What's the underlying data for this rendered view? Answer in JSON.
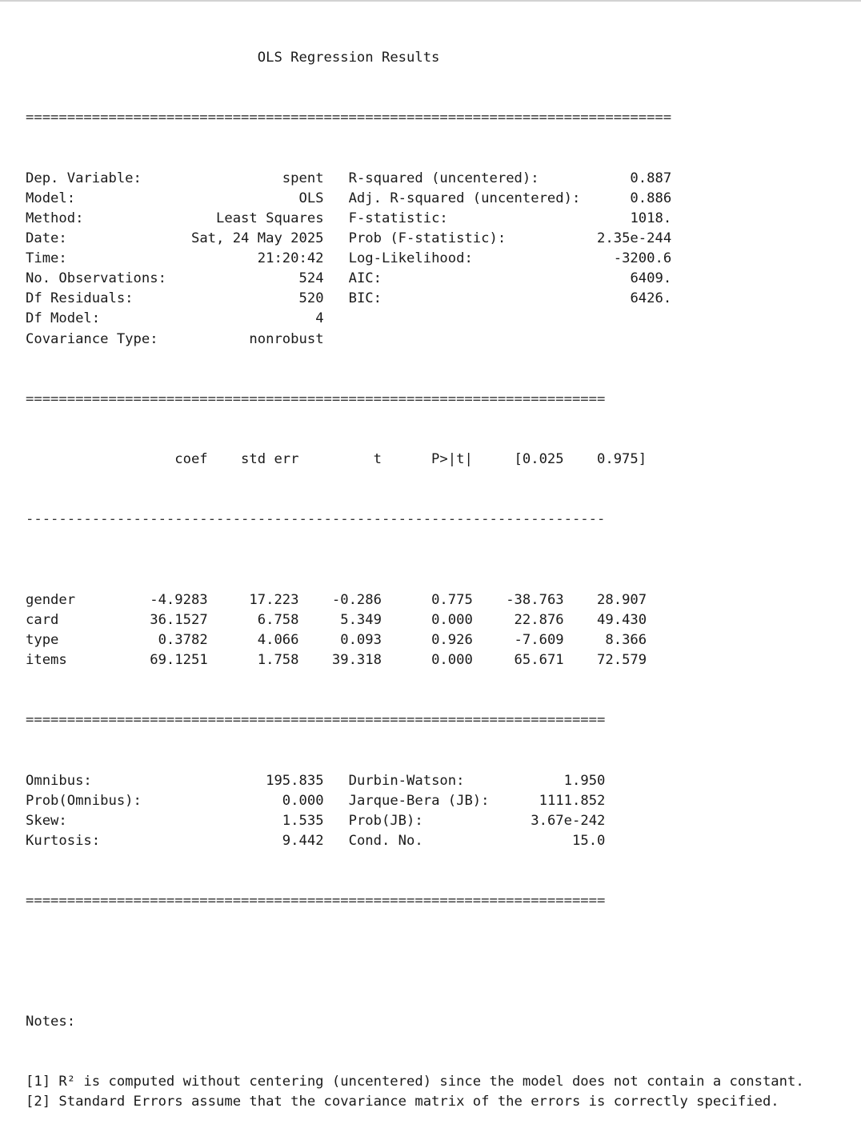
{
  "title": "OLS Regression Results",
  "rules": {
    "double_full": "==============================================================================",
    "double_short": "======================================================================",
    "dash_short": "----------------------------------------------------------------------"
  },
  "summary": [
    {
      "l_label": "Dep. Variable:",
      "l_value": "spent",
      "r_label": "R-squared (uncentered):",
      "r_value": "0.887"
    },
    {
      "l_label": "Model:",
      "l_value": "OLS",
      "r_label": "Adj. R-squared (uncentered):",
      "r_value": "0.886"
    },
    {
      "l_label": "Method:",
      "l_value": "Least Squares",
      "r_label": "F-statistic:",
      "r_value": "1018."
    },
    {
      "l_label": "Date:",
      "l_value": "Sat, 24 May 2025",
      "r_label": "Prob (F-statistic):",
      "r_value": "2.35e-244"
    },
    {
      "l_label": "Time:",
      "l_value": "21:20:42",
      "r_label": "Log-Likelihood:",
      "r_value": "-3200.6"
    },
    {
      "l_label": "No. Observations:",
      "l_value": "524",
      "r_label": "AIC:",
      "r_value": "6409."
    },
    {
      "l_label": "Df Residuals:",
      "l_value": "520",
      "r_label": "BIC:",
      "r_value": "6426."
    },
    {
      "l_label": "Df Model:",
      "l_value": "4",
      "r_label": "",
      "r_value": ""
    },
    {
      "l_label": "Covariance Type:",
      "l_value": "nonrobust",
      "r_label": "",
      "r_value": ""
    }
  ],
  "coef_table": {
    "headers": [
      "coef",
      "std err",
      "t",
      "P>|t|",
      "[0.025",
      "0.975]"
    ],
    "rows": [
      {
        "name": "gender",
        "values": [
          "-4.9283",
          "17.223",
          "-0.286",
          "0.775",
          "-38.763",
          "28.907"
        ]
      },
      {
        "name": "card",
        "values": [
          "36.1527",
          "6.758",
          "5.349",
          "0.000",
          "22.876",
          "49.430"
        ]
      },
      {
        "name": "type",
        "values": [
          "0.3782",
          "4.066",
          "0.093",
          "0.926",
          "-7.609",
          "8.366"
        ]
      },
      {
        "name": "items",
        "values": [
          "69.1251",
          "1.758",
          "39.318",
          "0.000",
          "65.671",
          "72.579"
        ]
      }
    ]
  },
  "diagnostics": [
    {
      "l_label": "Omnibus:",
      "l_value": "195.835",
      "r_label": "Durbin-Watson:",
      "r_value": "1.950"
    },
    {
      "l_label": "Prob(Omnibus):",
      "l_value": "0.000",
      "r_label": "Jarque-Bera (JB):",
      "r_value": "1111.852"
    },
    {
      "l_label": "Skew:",
      "l_value": "1.535",
      "r_label": "Prob(JB):",
      "r_value": "3.67e-242"
    },
    {
      "l_label": "Kurtosis:",
      "l_value": "9.442",
      "r_label": "Cond. No.",
      "r_value": "15.0"
    }
  ],
  "notes": {
    "heading": "Notes:",
    "items": [
      "[1] R² is computed without centering (uncentered) since the model does not contain a constant.",
      "[2] Standard Errors assume that the covariance matrix of the errors is correctly specified."
    ]
  }
}
